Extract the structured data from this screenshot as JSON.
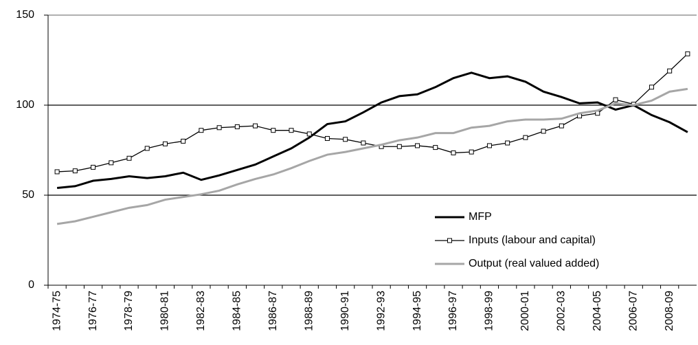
{
  "chart_data": {
    "type": "line",
    "categories": [
      "1974-75",
      null,
      "1976-77",
      null,
      "1978-79",
      null,
      "1980-81",
      null,
      "1982-83",
      null,
      "1984-85",
      null,
      "1986-87",
      null,
      "1988-89",
      null,
      "1990-91",
      null,
      "1992-93",
      null,
      "1994-95",
      null,
      "1996-97",
      null,
      "1998-99",
      null,
      "2000-01",
      null,
      "2002-03",
      null,
      "2004-05",
      null,
      "2006-07",
      null,
      "2008-09",
      null
    ],
    "series": [
      {
        "name": "MFP",
        "color": "#000000",
        "values": [
          54,
          55,
          58,
          59,
          60.5,
          59.5,
          60.5,
          62.5,
          58.5,
          61,
          64,
          67,
          71.5,
          76,
          82,
          89.5,
          91,
          96,
          101.5,
          105,
          106,
          110,
          115,
          118,
          115,
          116,
          113,
          107.5,
          104.5,
          101,
          101.5,
          97.5,
          100,
          94.5,
          90.5,
          85
        ]
      },
      {
        "name": "Inputs (labour and capital)",
        "color": "#000000",
        "values": [
          63,
          63.5,
          65.5,
          68,
          70.5,
          76,
          78.5,
          80,
          86,
          87.5,
          88,
          88.5,
          86,
          86,
          84,
          81.5,
          81,
          79,
          77,
          77,
          77.5,
          76.5,
          73.5,
          74,
          77.5,
          79,
          82,
          85.5,
          88.5,
          94,
          95.5,
          103,
          100.5,
          110,
          119,
          128.5
        ]
      },
      {
        "name": "Output (real valued added)",
        "color": "#a6a6a6",
        "values": [
          34,
          35.5,
          38,
          40.5,
          43,
          44.5,
          47.5,
          49,
          50.5,
          52.5,
          56,
          59,
          61.5,
          65,
          69,
          72.5,
          74,
          76,
          78,
          80.5,
          82,
          84.5,
          84.5,
          87.5,
          88.5,
          91,
          92,
          92,
          92.5,
          95.5,
          97,
          101,
          100,
          102.5,
          107.5,
          109
        ]
      }
    ],
    "ylim": [
      0,
      150
    ],
    "yticks": [
      0,
      50,
      100,
      150
    ],
    "grid": true
  }
}
